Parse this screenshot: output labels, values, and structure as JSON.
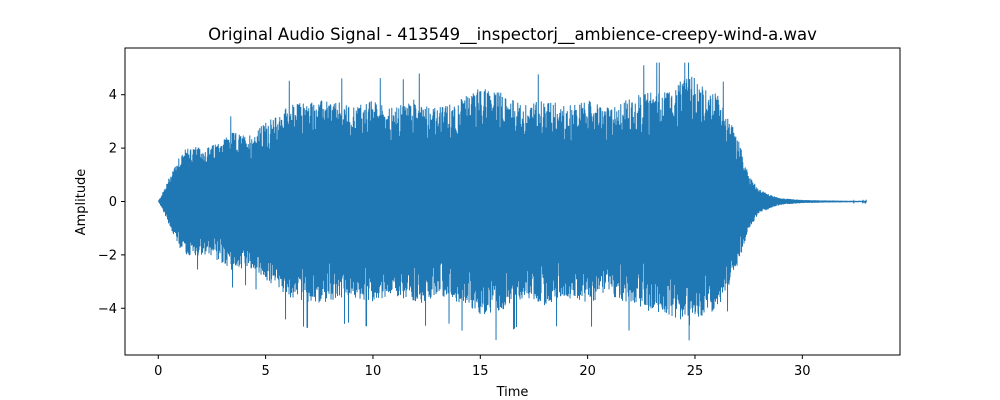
{
  "chart_data": {
    "type": "line",
    "title": "Original Audio Signal - 413549__inspectorj__ambience-creepy-wind-a.wav",
    "xlabel": "Time",
    "ylabel": "Amplitude",
    "xlim": [
      -1.55,
      34.55
    ],
    "ylim": [
      -5.75,
      5.75
    ],
    "xticks": [
      0,
      5,
      10,
      15,
      20,
      25,
      30
    ],
    "yticks": [
      -4,
      -2,
      0,
      2,
      4
    ],
    "ytick_labels": [
      "−4",
      "−2",
      "0",
      "2",
      "4"
    ],
    "grid": false,
    "duration": 33.0,
    "series": [
      {
        "color": "#1f77b4",
        "envelope": {
          "time": [
            0,
            0.3,
            0.6,
            1.0,
            1.5,
            2.0,
            2.5,
            3.0,
            3.5,
            4.0,
            4.5,
            5.0,
            5.5,
            6.0,
            7.0,
            8.0,
            9.0,
            10.0,
            11.0,
            12.0,
            13.0,
            14.0,
            15.0,
            16.0,
            17.0,
            18.0,
            19.0,
            20.0,
            21.0,
            22.0,
            23.0,
            24.0,
            24.5,
            25.0,
            25.5,
            26.0,
            26.5,
            27.0,
            27.5,
            28.0,
            28.5,
            29.0,
            30.0,
            31.0,
            32.0,
            33.0
          ],
          "amplitude": [
            0.0,
            0.5,
            1.1,
            1.8,
            2.1,
            2.0,
            2.1,
            2.4,
            2.6,
            2.5,
            2.6,
            3.0,
            3.2,
            3.6,
            3.8,
            3.8,
            3.6,
            3.8,
            3.5,
            3.9,
            3.5,
            3.8,
            4.3,
            4.1,
            3.6,
            3.9,
            3.6,
            3.8,
            3.5,
            3.9,
            4.2,
            4.3,
            4.6,
            4.7,
            4.2,
            4.1,
            3.3,
            2.4,
            1.0,
            0.45,
            0.25,
            0.12,
            0.06,
            0.04,
            0.03,
            0.02
          ]
        },
        "peak_max": 5.2,
        "peak_min": -5.2
      }
    ]
  }
}
